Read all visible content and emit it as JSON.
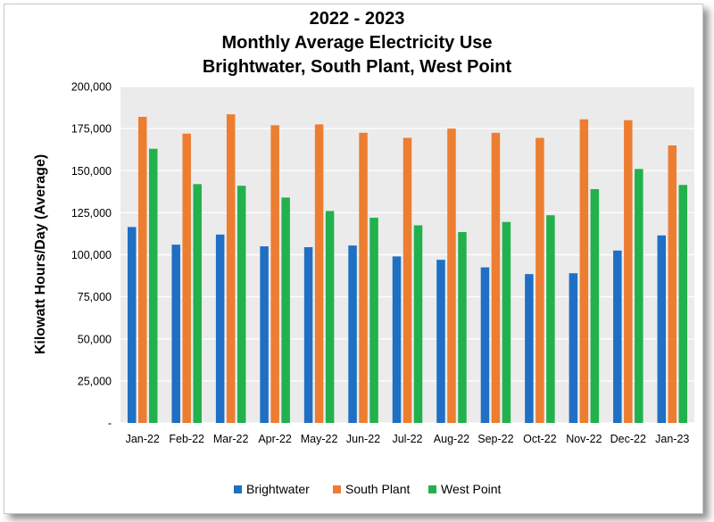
{
  "chart_data": {
    "type": "bar",
    "title_lines": [
      "2022 - 2023",
      "Monthly Average Electricity Use",
      "Brightwater, South Plant, West Point"
    ],
    "xlabel": "",
    "ylabel": "Kilowatt Hours/Day (Average)",
    "ylim": [
      0,
      200000
    ],
    "yticks": [
      0,
      25000,
      50000,
      75000,
      100000,
      125000,
      150000,
      175000,
      200000
    ],
    "ytick_labels": [
      "-",
      "25,000",
      "50,000",
      "75,000",
      "100,000",
      "125,000",
      "150,000",
      "175,000",
      "200,000"
    ],
    "grid": true,
    "legend_position": "bottom",
    "categories": [
      "Jan-22",
      "Feb-22",
      "Mar-22",
      "Apr-22",
      "May-22",
      "Jun-22",
      "Jul-22",
      "Aug-22",
      "Sep-22",
      "Oct-22",
      "Nov-22",
      "Dec-22",
      "Jan-23"
    ],
    "series": [
      {
        "name": "Brightwater",
        "color": "#1f6fc4",
        "values": [
          116500,
          106000,
          112000,
          105000,
          104500,
          105500,
          99000,
          97000,
          92500,
          88500,
          89000,
          102500,
          111500
        ]
      },
      {
        "name": "South Plant",
        "color": "#ed7d31",
        "values": [
          182000,
          172000,
          183500,
          177000,
          177500,
          172500,
          169500,
          175000,
          172500,
          169500,
          180500,
          180000,
          165000
        ]
      },
      {
        "name": "West Point",
        "color": "#22b14c",
        "values": [
          163000,
          142000,
          141000,
          134000,
          126000,
          122000,
          117500,
          113500,
          119500,
          123500,
          139000,
          151000,
          141500
        ]
      }
    ]
  }
}
